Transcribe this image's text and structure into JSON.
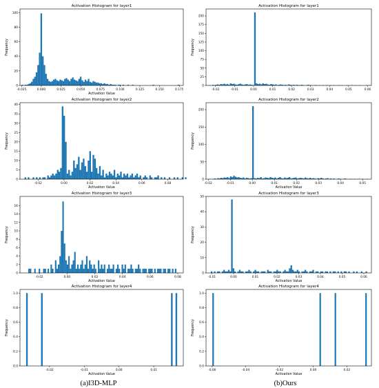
{
  "captions": {
    "left": "(a)I3D-MLP",
    "right": "(b)Ours"
  },
  "colors": {
    "bar": "#1f77b4"
  },
  "chart_data": [
    {
      "type": "bar",
      "title": "Activation Histogram for layer1",
      "xlabel": "Activation Value",
      "ylabel": "Frequency",
      "xlim": [
        -0.027,
        0.18
      ],
      "ylim": [
        0,
        105
      ],
      "xticks": [
        -0.025,
        0.0,
        0.025,
        0.05,
        0.075,
        0.1,
        0.125,
        0.15,
        0.175
      ],
      "xtick_labels": [
        "-0.025",
        "0.000",
        "0.025",
        "0.050",
        "0.075",
        "0.100",
        "0.125",
        "0.150",
        "0.175"
      ],
      "yticks": [
        0,
        20,
        40,
        60,
        80,
        100
      ],
      "bins": {
        "start": -0.025,
        "width": 0.002,
        "counts": [
          1,
          0,
          1,
          1,
          2,
          3,
          5,
          9,
          12,
          18,
          28,
          45,
          99,
          40,
          28,
          16,
          9,
          6,
          5,
          6,
          8,
          9,
          7,
          6,
          8,
          7,
          6,
          9,
          10,
          8,
          6,
          9,
          11,
          8,
          7,
          6,
          9,
          12,
          7,
          5,
          8,
          6,
          9,
          5,
          4,
          6,
          5,
          4,
          4,
          3,
          3,
          2,
          3,
          2,
          2,
          1,
          2,
          1,
          1,
          1,
          0,
          1,
          1,
          0,
          1,
          0,
          0,
          1,
          0,
          0,
          1,
          0,
          0,
          0,
          0,
          0,
          0,
          0,
          0,
          0,
          0,
          0,
          0,
          1,
          0,
          0,
          0,
          0,
          0,
          0,
          0,
          0,
          0,
          0,
          0,
          0,
          0,
          0,
          0,
          1
        ]
      }
    },
    {
      "type": "bar",
      "title": "Activation Histogram for layer1",
      "xlabel": "",
      "ylabel": "Frequency",
      "xlim": [
        -0.025,
        0.062
      ],
      "ylim": [
        0,
        220
      ],
      "xticks": [
        -0.02,
        -0.01,
        0.0,
        0.01,
        0.02,
        0.03,
        0.04,
        0.05,
        0.06
      ],
      "xtick_labels": [
        "-0.02",
        "-0.01",
        "0.00",
        "0.01",
        "0.02",
        "0.03",
        "0.04",
        "0.05",
        "0.06"
      ],
      "yticks": [
        0,
        25,
        50,
        75,
        100,
        125,
        150,
        175,
        200
      ],
      "bins": {
        "start": -0.0235,
        "width": 0.00085,
        "counts": [
          1,
          0,
          2,
          1,
          2,
          3,
          2,
          4,
          3,
          5,
          3,
          4,
          2,
          6,
          4,
          5,
          3,
          2,
          4,
          5,
          3,
          2,
          3,
          4,
          2,
          3,
          2,
          1,
          210,
          6,
          4,
          5,
          3,
          6,
          4,
          5,
          3,
          2,
          4,
          3,
          2,
          3,
          1,
          2,
          3,
          2,
          1,
          2,
          1,
          3,
          2,
          1,
          2,
          1,
          2,
          1,
          1,
          2,
          1,
          0,
          1,
          2,
          1,
          1,
          0,
          1,
          1,
          0,
          1,
          0,
          1,
          0,
          1,
          1,
          0,
          1,
          0,
          1,
          0,
          0,
          1,
          0,
          1,
          0,
          0,
          1,
          0,
          0,
          1,
          0,
          1,
          0,
          0,
          1,
          0,
          0,
          0,
          1,
          0,
          1
        ]
      }
    },
    {
      "type": "bar",
      "title": "Activation Histogram for layer2",
      "xlabel": "Activation Value",
      "ylabel": "Frequency",
      "xlim": [
        -0.034,
        0.092
      ],
      "ylim": [
        0,
        41
      ],
      "xticks": [
        -0.02,
        0.0,
        0.02,
        0.04,
        0.06,
        0.08
      ],
      "xtick_labels": [
        "-0.02",
        "0.00",
        "0.02",
        "0.04",
        "0.06",
        "0.08"
      ],
      "yticks": [
        0,
        5,
        10,
        15,
        20,
        25,
        30,
        35,
        40
      ],
      "bins": {
        "start": -0.0305,
        "width": 0.00125,
        "counts": [
          1,
          0,
          1,
          0,
          0,
          1,
          0,
          1,
          0,
          1,
          0,
          1,
          1,
          0,
          2,
          1,
          2,
          3,
          2,
          3,
          5,
          4,
          6,
          39,
          34,
          20,
          3,
          5,
          2,
          4,
          10,
          6,
          8,
          12,
          5,
          9,
          11,
          7,
          4,
          10,
          15,
          4,
          13,
          11,
          6,
          3,
          7,
          2,
          5,
          1,
          3,
          2,
          4,
          3,
          2,
          5,
          1,
          3,
          2,
          4,
          1,
          3,
          2,
          3,
          1,
          2,
          3,
          1,
          2,
          3,
          1,
          2,
          0,
          1,
          2,
          1,
          0,
          2,
          1,
          0,
          1,
          1,
          2,
          0,
          1,
          0,
          1,
          0,
          0,
          1,
          0,
          0,
          1,
          0,
          1,
          0,
          0,
          1,
          0,
          1
        ]
      }
    },
    {
      "type": "bar",
      "title": "Activation Histogram for layer2",
      "xlabel": "Activation Value",
      "ylabel": "Frequency",
      "xlim": [
        -0.021,
        0.054
      ],
      "ylim": [
        0,
        220
      ],
      "xticks": [
        -0.02,
        -0.01,
        0.0,
        0.01,
        0.02,
        0.03,
        0.04,
        0.05
      ],
      "xtick_labels": [
        "-0.02",
        "-0.01",
        "0.00",
        "0.01",
        "0.02",
        "0.03",
        "0.04",
        "0.05"
      ],
      "yticks": [
        0,
        50,
        100,
        150,
        200
      ],
      "bins": {
        "start": -0.0195,
        "width": 0.00072,
        "counts": [
          1,
          0,
          1,
          2,
          1,
          3,
          2,
          4,
          3,
          5,
          4,
          6,
          3,
          8,
          6,
          10,
          7,
          5,
          6,
          4,
          3,
          5,
          2,
          4,
          3,
          2,
          3,
          210,
          3,
          2,
          4,
          3,
          6,
          2,
          3,
          5,
          4,
          3,
          6,
          4,
          3,
          5,
          2,
          4,
          6,
          3,
          2,
          5,
          3,
          4,
          6,
          2,
          3,
          4,
          5,
          2,
          3,
          4,
          3,
          2,
          5,
          3,
          2,
          4,
          2,
          3,
          2,
          1,
          3,
          2,
          4,
          2,
          1,
          2,
          3,
          1,
          2,
          1,
          2,
          0,
          1,
          2,
          1,
          0,
          1,
          2,
          1,
          0,
          1,
          1,
          0,
          1,
          0,
          1,
          1,
          0,
          1,
          0,
          0,
          1
        ]
      }
    },
    {
      "type": "bar",
      "title": "Activation Histogram for layer3",
      "xlabel": "Activation Value",
      "ylabel": "Frequency",
      "xlim": [
        -0.034,
        0.084
      ],
      "ylim": [
        0,
        18.2
      ],
      "xticks": [
        -0.02,
        0.0,
        0.02,
        0.04,
        0.06,
        0.08
      ],
      "xtick_labels": [
        "-0.02",
        "0.00",
        "0.02",
        "0.04",
        "0.06",
        "0.08"
      ],
      "yticks": [
        0,
        2,
        4,
        6,
        8,
        10,
        12,
        14,
        16
      ],
      "bins": {
        "start": -0.028,
        "width": 0.00107,
        "counts": [
          1,
          1,
          0,
          0,
          1,
          0,
          0,
          1,
          0,
          0,
          1,
          1,
          0,
          1,
          0,
          2,
          1,
          0,
          3,
          1,
          2,
          4,
          10,
          17,
          7,
          3,
          2,
          4,
          1,
          2,
          3,
          5,
          1,
          2,
          1,
          2,
          3,
          1,
          2,
          4,
          1,
          3,
          2,
          1,
          2,
          1,
          0,
          3,
          1,
          2,
          1,
          2,
          0,
          1,
          2,
          1,
          1,
          2,
          0,
          1,
          2,
          1,
          0,
          2,
          1,
          2,
          0,
          1,
          1,
          2,
          1,
          0,
          1,
          1,
          2,
          1,
          0,
          1,
          1,
          1,
          0,
          1,
          1,
          1,
          0,
          1,
          0,
          1,
          1,
          1,
          0,
          1,
          1,
          0,
          1,
          1,
          0,
          1,
          0,
          1
        ]
      }
    },
    {
      "type": "bar",
      "title": "Activation Histogram for layer3",
      "xlabel": "Activation Value",
      "ylabel": "Frequency",
      "xlim": [
        -0.0127,
        0.0635
      ],
      "ylim": [
        0,
        50
      ],
      "xticks": [
        -0.01,
        0.0,
        0.01,
        0.02,
        0.03,
        0.04,
        0.05,
        0.06
      ],
      "xtick_labels": [
        "-0.01",
        "0.00",
        "0.01",
        "0.02",
        "0.03",
        "0.04",
        "0.05",
        "0.06"
      ],
      "yticks": [
        0,
        10,
        20,
        30,
        40,
        50
      ],
      "bins": {
        "start": -0.0105,
        "width": 0.00072,
        "counts": [
          1,
          0,
          1,
          0,
          1,
          1,
          0,
          1,
          2,
          1,
          1,
          2,
          1,
          48,
          3,
          1,
          0,
          1,
          2,
          1,
          1,
          0,
          1,
          1,
          2,
          1,
          0,
          1,
          2,
          1,
          1,
          0,
          1,
          1,
          1,
          0,
          2,
          1,
          1,
          0,
          1,
          1,
          2,
          1,
          1,
          0,
          1,
          2,
          1,
          1,
          3,
          5,
          2,
          1,
          1,
          2,
          1,
          0,
          1,
          1,
          2,
          1,
          0,
          1,
          1,
          2,
          0,
          1,
          1,
          0,
          1,
          1,
          0,
          1,
          1,
          0,
          1,
          0,
          1,
          1,
          0,
          1,
          0,
          1,
          0,
          1,
          1,
          0,
          1,
          0,
          0,
          1,
          0,
          1,
          0,
          0,
          1,
          0,
          0,
          1
        ]
      }
    },
    {
      "type": "bar",
      "title": "Activation Histogram for layer4",
      "xlabel": "Activation Value",
      "ylabel": "Frequency",
      "xlim": [
        -0.0285,
        0.0185
      ],
      "ylim": [
        0,
        1.05
      ],
      "xticks": [
        -0.02,
        -0.01,
        0.0,
        0.01
      ],
      "xtick_labels": [
        "-0.02",
        "-0.01",
        "0.00",
        "0.01"
      ],
      "yticks": [
        0.0,
        0.2,
        0.4,
        0.6,
        0.8,
        1.0
      ],
      "ytick_labels": [
        "0.0",
        "0.2",
        "0.4",
        "0.6",
        "0.8",
        "1.0"
      ],
      "bars": [
        {
          "x": -0.0265,
          "value": 1
        },
        {
          "x": -0.0222,
          "value": 1
        },
        {
          "x": 0.0152,
          "value": 1
        },
        {
          "x": 0.0165,
          "value": 1
        }
      ],
      "bar_width": 0.00047
    },
    {
      "type": "bar",
      "title": "Activation Histogram for layer4",
      "xlabel": "Activation Value",
      "ylabel": "Frequency",
      "xlim": [
        -0.0636,
        0.0346
      ],
      "ylim": [
        0,
        1.05
      ],
      "xticks": [
        -0.06,
        -0.04,
        -0.02,
        0.0,
        0.02
      ],
      "xtick_labels": [
        "-0.06",
        "-0.04",
        "-0.02",
        "0.00",
        "0.02"
      ],
      "yticks": [
        0.0,
        0.2,
        0.4,
        0.6,
        0.8,
        1.0
      ],
      "ytick_labels": [
        "0.0",
        "0.2",
        "0.4",
        "0.6",
        "0.8",
        "1.0"
      ],
      "bars": [
        {
          "x": -0.0594,
          "value": 1
        },
        {
          "x": 0.0042,
          "value": 1
        },
        {
          "x": 0.0132,
          "value": 1
        },
        {
          "x": 0.0314,
          "value": 1
        }
      ],
      "bar_width": 0.0009
    }
  ]
}
